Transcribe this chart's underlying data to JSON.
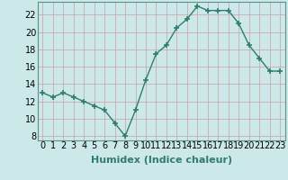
{
  "x": [
    0,
    1,
    2,
    3,
    4,
    5,
    6,
    7,
    8,
    9,
    10,
    11,
    12,
    13,
    14,
    15,
    16,
    17,
    18,
    19,
    20,
    21,
    22,
    23
  ],
  "y": [
    13,
    12.5,
    13,
    12.5,
    12,
    11.5,
    11,
    9.5,
    8,
    11,
    14.5,
    17.5,
    18.5,
    20.5,
    21.5,
    23,
    22.5,
    22.5,
    22.5,
    21,
    18.5,
    17,
    15.5,
    15.5
  ],
  "line_color": "#2e7d6e",
  "marker": "+",
  "marker_size": 4,
  "bg_color": "#cde8e8",
  "grid_color": "#b0d0d0",
  "xlabel": "Humidex (Indice chaleur)",
  "ylabel_ticks": [
    8,
    10,
    12,
    14,
    16,
    18,
    20,
    22
  ],
  "xlim": [
    -0.5,
    23.5
  ],
  "ylim": [
    7.5,
    23.5
  ],
  "xlabel_fontsize": 8,
  "tick_fontsize": 7
}
